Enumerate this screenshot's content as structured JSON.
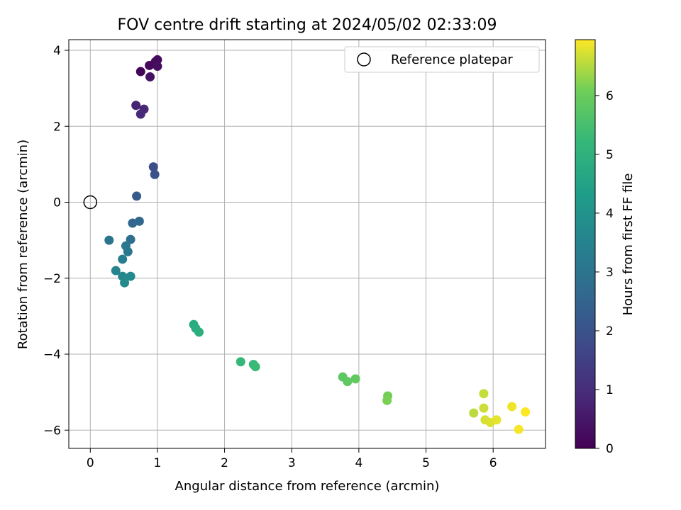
{
  "chart_data": {
    "type": "scatter",
    "title": "FOV centre drift starting at 2024/05/02 02:33:09",
    "xlabel": "Angular distance from reference (arcmin)",
    "ylabel": "Rotation from reference (arcmin)",
    "xlim": [
      -0.32,
      6.78
    ],
    "ylim": [
      -6.48,
      4.28
    ],
    "xticks": [
      0,
      1,
      2,
      3,
      4,
      5,
      6
    ],
    "xtick_labels": [
      "0",
      "1",
      "2",
      "3",
      "4",
      "5",
      "6"
    ],
    "yticks": [
      -6,
      -4,
      -2,
      0,
      2,
      4
    ],
    "ytick_labels": [
      "−6",
      "−4",
      "−2",
      "0",
      "2",
      "4"
    ],
    "grid": true,
    "legend": {
      "placement": "top-right",
      "entries": [
        {
          "label": "Reference platepar",
          "marker": "open-circle"
        }
      ]
    },
    "reference_point": {
      "x": 0,
      "y": 0
    },
    "colorbar": {
      "label": "Hours from first FF file",
      "range": [
        0,
        6.95
      ],
      "ticks": [
        0,
        1,
        2,
        3,
        4,
        5,
        6
      ],
      "tick_labels": [
        "0",
        "1",
        "2",
        "3",
        "4",
        "5",
        "6"
      ],
      "colormap": "viridis"
    },
    "points": [
      {
        "x": 0.75,
        "y": 3.44,
        "c": 0.1
      },
      {
        "x": 0.88,
        "y": 3.6,
        "c": 0.15
      },
      {
        "x": 0.97,
        "y": 3.7,
        "c": 0.2
      },
      {
        "x": 1.0,
        "y": 3.75,
        "c": 0.25
      },
      {
        "x": 1.0,
        "y": 3.58,
        "c": 0.3
      },
      {
        "x": 0.89,
        "y": 3.3,
        "c": 0.35
      },
      {
        "x": 0.68,
        "y": 2.55,
        "c": 0.75
      },
      {
        "x": 0.8,
        "y": 2.45,
        "c": 0.85
      },
      {
        "x": 0.75,
        "y": 2.32,
        "c": 0.95
      },
      {
        "x": 0.94,
        "y": 0.93,
        "c": 1.85
      },
      {
        "x": 0.96,
        "y": 0.73,
        "c": 1.95
      },
      {
        "x": 0.69,
        "y": 0.16,
        "c": 2.2
      },
      {
        "x": 0.63,
        "y": -0.55,
        "c": 2.55
      },
      {
        "x": 0.73,
        "y": -0.5,
        "c": 2.6
      },
      {
        "x": 0.6,
        "y": -0.98,
        "c": 2.8
      },
      {
        "x": 0.28,
        "y": -1.0,
        "c": 3.0
      },
      {
        "x": 0.53,
        "y": -1.15,
        "c": 3.1
      },
      {
        "x": 0.56,
        "y": -1.3,
        "c": 3.15
      },
      {
        "x": 0.48,
        "y": -1.5,
        "c": 3.3
      },
      {
        "x": 0.38,
        "y": -1.8,
        "c": 3.55
      },
      {
        "x": 0.48,
        "y": -1.95,
        "c": 3.6
      },
      {
        "x": 0.6,
        "y": -1.95,
        "c": 3.7
      },
      {
        "x": 0.51,
        "y": -2.12,
        "c": 3.75
      },
      {
        "x": 1.54,
        "y": -3.22,
        "c": 4.8
      },
      {
        "x": 1.57,
        "y": -3.32,
        "c": 4.85
      },
      {
        "x": 1.62,
        "y": -3.42,
        "c": 4.9
      },
      {
        "x": 2.24,
        "y": -4.2,
        "c": 5.2
      },
      {
        "x": 2.43,
        "y": -4.27,
        "c": 5.25
      },
      {
        "x": 2.46,
        "y": -4.33,
        "c": 5.3
      },
      {
        "x": 3.76,
        "y": -4.6,
        "c": 5.8
      },
      {
        "x": 3.83,
        "y": -4.72,
        "c": 5.85
      },
      {
        "x": 3.95,
        "y": -4.65,
        "c": 5.9
      },
      {
        "x": 4.43,
        "y": -5.1,
        "c": 6.1
      },
      {
        "x": 4.42,
        "y": -5.22,
        "c": 6.15
      },
      {
        "x": 5.71,
        "y": -5.55,
        "c": 6.55
      },
      {
        "x": 5.86,
        "y": -5.04,
        "c": 6.6
      },
      {
        "x": 5.86,
        "y": -5.42,
        "c": 6.65
      },
      {
        "x": 5.88,
        "y": -5.73,
        "c": 6.7
      },
      {
        "x": 5.96,
        "y": -5.8,
        "c": 6.75
      },
      {
        "x": 6.05,
        "y": -5.73,
        "c": 6.8
      },
      {
        "x": 6.28,
        "y": -5.38,
        "c": 6.85
      },
      {
        "x": 6.38,
        "y": -5.98,
        "c": 6.9
      },
      {
        "x": 6.48,
        "y": -5.52,
        "c": 6.95
      }
    ]
  }
}
